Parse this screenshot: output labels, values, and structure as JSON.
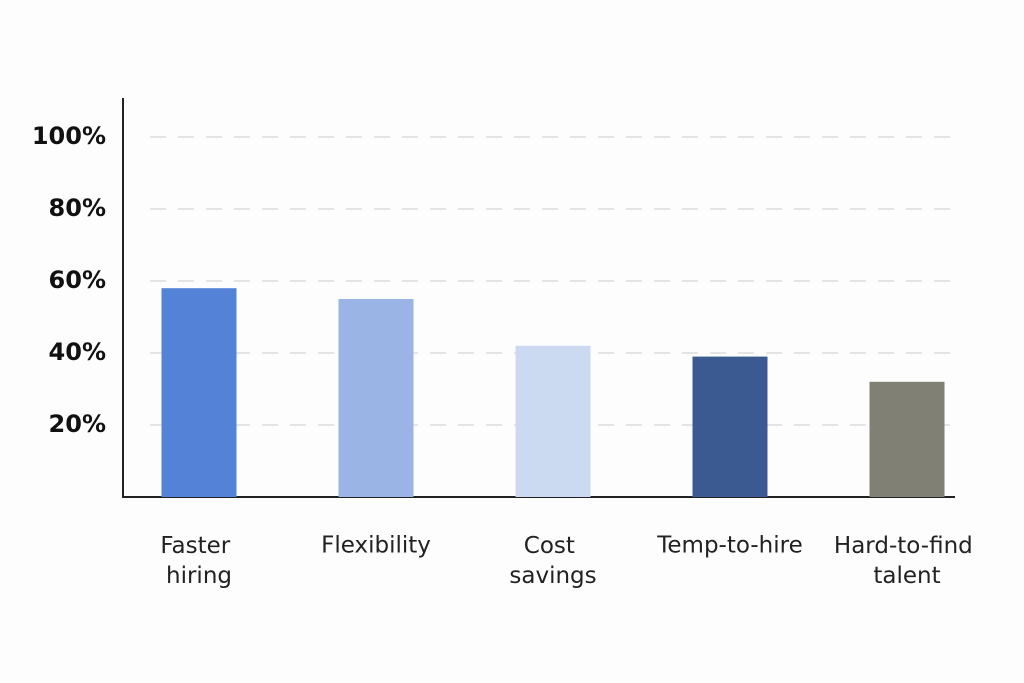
{
  "chart_data": {
    "type": "bar",
    "categories": [
      "Faster hiring",
      "Flexibility",
      "Cost savings",
      "Temp-to-hire",
      "Hard-to-find talent"
    ],
    "values": [
      58,
      55,
      42,
      39,
      32
    ],
    "colors": [
      "#5382d6",
      "#9ab4e6",
      "#cbd9f1",
      "#3a5a91",
      "#808074"
    ],
    "ylim": [
      0,
      110
    ],
    "yticks": [
      {
        "value": 20,
        "label": "20%"
      },
      {
        "value": 40,
        "label": "40%"
      },
      {
        "value": 60,
        "label": "60%"
      },
      {
        "value": 80,
        "label": "80%"
      },
      {
        "value": 100,
        "label": "100%"
      }
    ],
    "grid": true
  }
}
